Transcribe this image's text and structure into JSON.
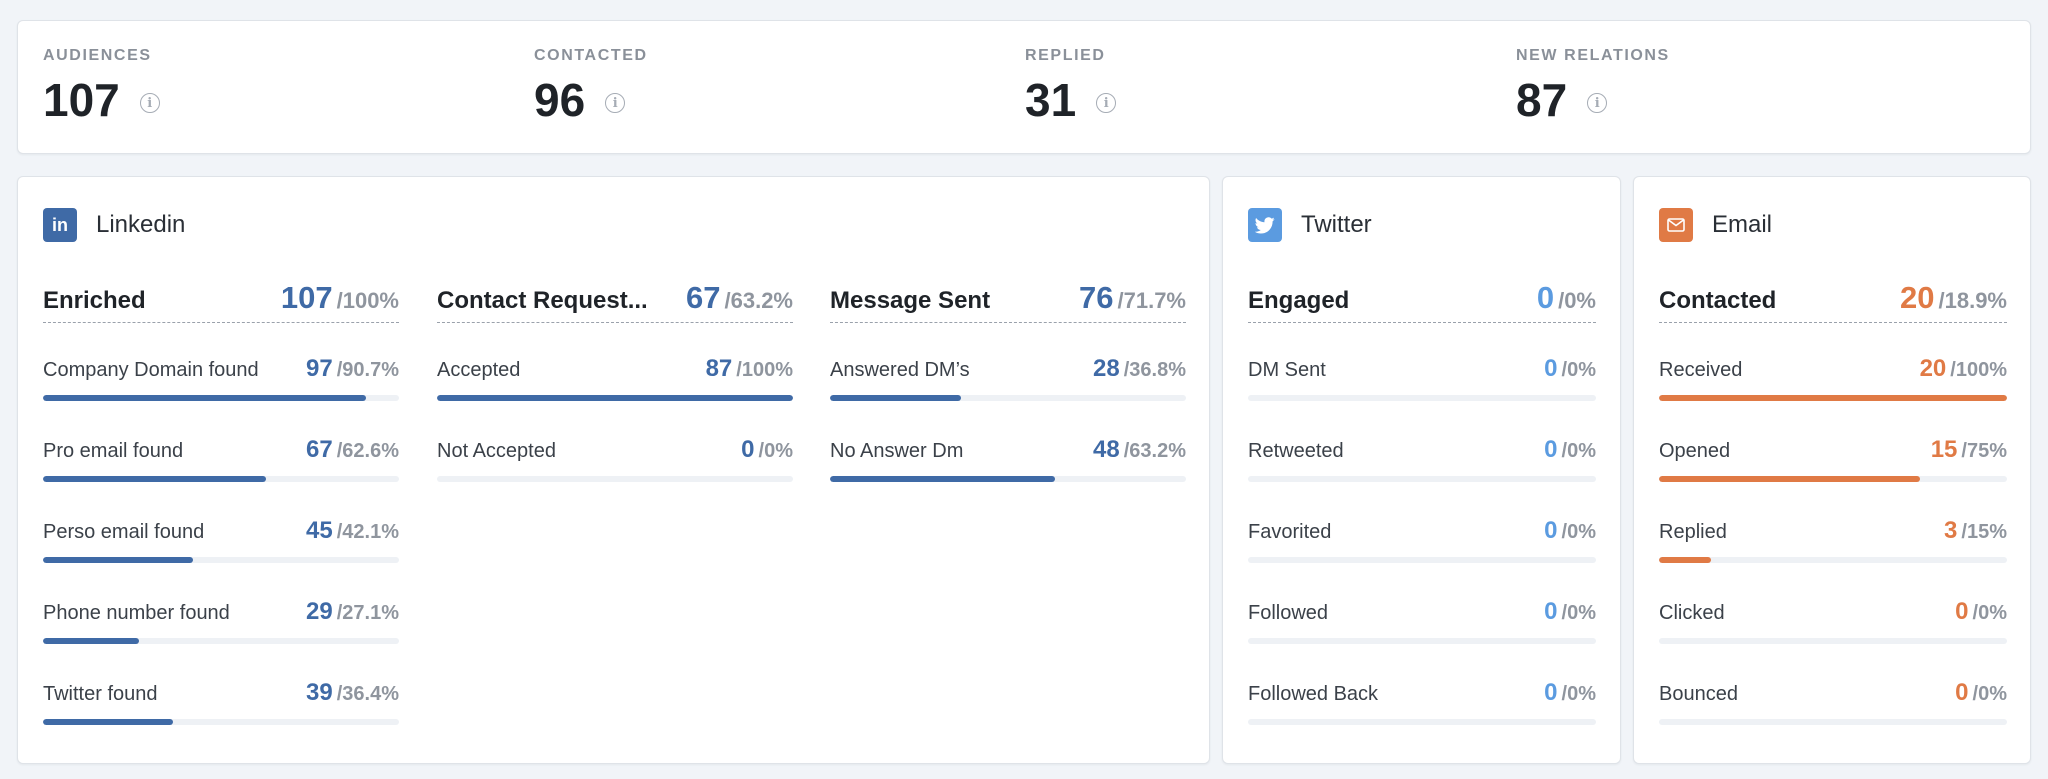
{
  "stats": [
    {
      "label": "AUDIENCES",
      "value": "107"
    },
    {
      "label": "CONTACTED",
      "value": "96"
    },
    {
      "label": "REPLIED",
      "value": "31"
    },
    {
      "label": "NEW RELATIONS",
      "value": "87"
    }
  ],
  "colors": {
    "linkedin": "#3f6aa6",
    "twitter": "#5b9be0",
    "email": "#e07a45"
  },
  "linkedin": {
    "title": "Linkedin",
    "icon": "linkedin-icon",
    "badge_text": "in",
    "columns": [
      {
        "title": "Enriched",
        "value": "107",
        "pct": "/100%",
        "rows": [
          {
            "label": "Company Domain found",
            "value": "97",
            "pct": "/90.7%",
            "progress": 90.7
          },
          {
            "label": "Pro email found",
            "value": "67",
            "pct": "/62.6%",
            "progress": 62.6
          },
          {
            "label": "Perso email found",
            "value": "45",
            "pct": "/42.1%",
            "progress": 42.1
          },
          {
            "label": "Phone number found",
            "value": "29",
            "pct": "/27.1%",
            "progress": 27.1
          },
          {
            "label": "Twitter found",
            "value": "39",
            "pct": "/36.4%",
            "progress": 36.4
          }
        ]
      },
      {
        "title": "Contact Request...",
        "value": "67",
        "pct": "/63.2%",
        "rows": [
          {
            "label": "Accepted",
            "value": "87",
            "pct": "/100%",
            "progress": 100
          },
          {
            "label": "Not Accepted",
            "value": "0",
            "pct": "/0%",
            "progress": 0
          }
        ]
      },
      {
        "title": "Message Sent",
        "value": "76",
        "pct": "/71.7%",
        "rows": [
          {
            "label": "Answered DM’s",
            "value": "28",
            "pct": "/36.8%",
            "progress": 36.8
          },
          {
            "label": "No Answer Dm",
            "value": "48",
            "pct": "/63.2%",
            "progress": 63.2
          }
        ]
      }
    ]
  },
  "twitter": {
    "title": "Twitter",
    "icon": "twitter-bird-icon",
    "column": {
      "title": "Engaged",
      "value": "0",
      "pct": "/0%",
      "rows": [
        {
          "label": "DM Sent",
          "value": "0",
          "pct": "/0%",
          "progress": 0
        },
        {
          "label": "Retweeted",
          "value": "0",
          "pct": "/0%",
          "progress": 0
        },
        {
          "label": "Favorited",
          "value": "0",
          "pct": "/0%",
          "progress": 0
        },
        {
          "label": "Followed",
          "value": "0",
          "pct": "/0%",
          "progress": 0
        },
        {
          "label": "Followed Back",
          "value": "0",
          "pct": "/0%",
          "progress": 0
        }
      ]
    }
  },
  "email": {
    "title": "Email",
    "icon": "envelope-icon",
    "column": {
      "title": "Contacted",
      "value": "20",
      "pct": "/18.9%",
      "rows": [
        {
          "label": "Received",
          "value": "20",
          "pct": "/100%",
          "progress": 100
        },
        {
          "label": "Opened",
          "value": "15",
          "pct": "/75%",
          "progress": 75
        },
        {
          "label": "Replied",
          "value": "3",
          "pct": "/15%",
          "progress": 15
        },
        {
          "label": "Clicked",
          "value": "0",
          "pct": "/0%",
          "progress": 0
        },
        {
          "label": "Bounced",
          "value": "0",
          "pct": "/0%",
          "progress": 0
        }
      ]
    }
  }
}
